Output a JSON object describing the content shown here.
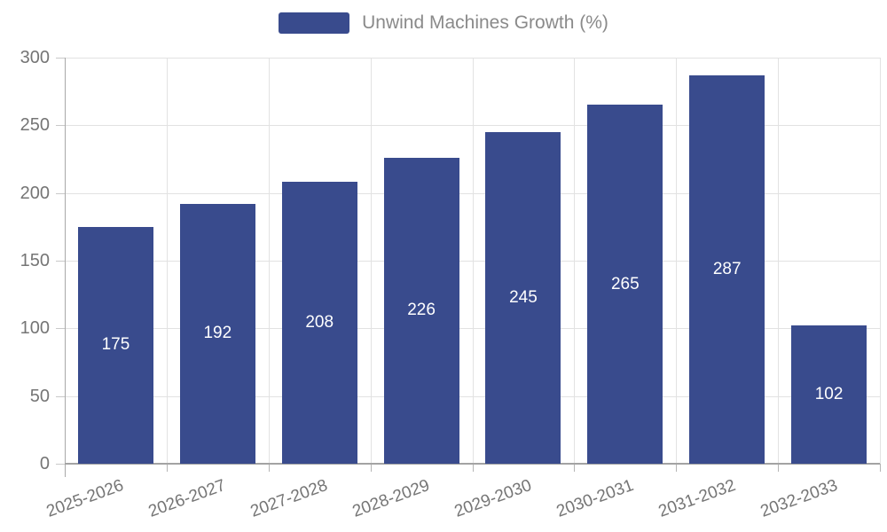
{
  "legend": {
    "label": "Unwind Machines Growth (%)"
  },
  "chart_data": {
    "type": "bar",
    "title": "",
    "series_name": "Unwind Machines Growth (%)",
    "categories": [
      "2025-2026",
      "2026-2027",
      "2027-2028",
      "2028-2029",
      "2029-2030",
      "2030-2031",
      "2031-2032",
      "2032-2033"
    ],
    "values": [
      175,
      192,
      208,
      226,
      245,
      265,
      287,
      102
    ],
    "xlabel": "",
    "ylabel": "",
    "ylim": [
      0,
      300
    ],
    "yticks": [
      0,
      50,
      100,
      150,
      200,
      250,
      300
    ],
    "grid": "both",
    "legend_position": "top",
    "value_labels": "inside-center",
    "colors": {
      "bar": "#394b8d",
      "value_label": "#ffffff",
      "grid": "#e2e2e2",
      "axis": "#a3a3a3",
      "tick_label": "#757575",
      "legend_text": "#8a8a8a",
      "background": "#ffffff"
    }
  }
}
